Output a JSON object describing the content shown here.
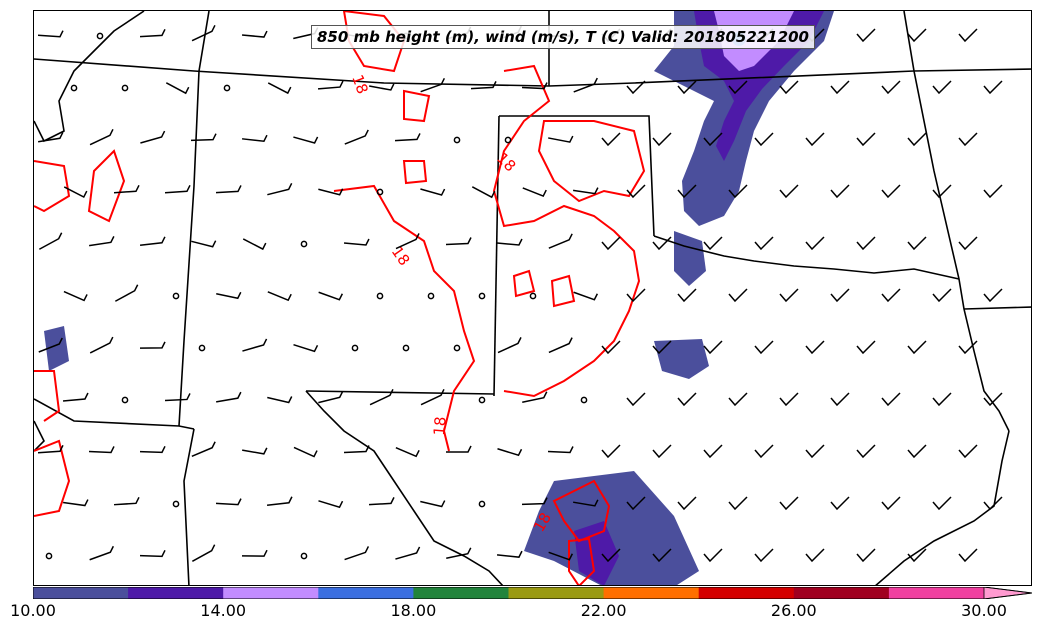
{
  "title": "850 mb height (m), wind (m/s), T (C) Valid: 201805221200",
  "isotherm_label": "18",
  "isotherm_color": "#ff0000",
  "colorbar": {
    "colors": [
      "#4b4f9c",
      "#4e1aa8",
      "#c28cff",
      "#3b6fe0",
      "#22843c",
      "#9a9a12",
      "#ff6f00",
      "#d40000",
      "#a00020",
      "#f040a0",
      "#ff9ad0"
    ],
    "tick_labels": [
      "10.00",
      "14.00",
      "18.00",
      "22.00",
      "26.00",
      "30.00"
    ],
    "min": 10,
    "max": 30,
    "extend": "max"
  }
}
